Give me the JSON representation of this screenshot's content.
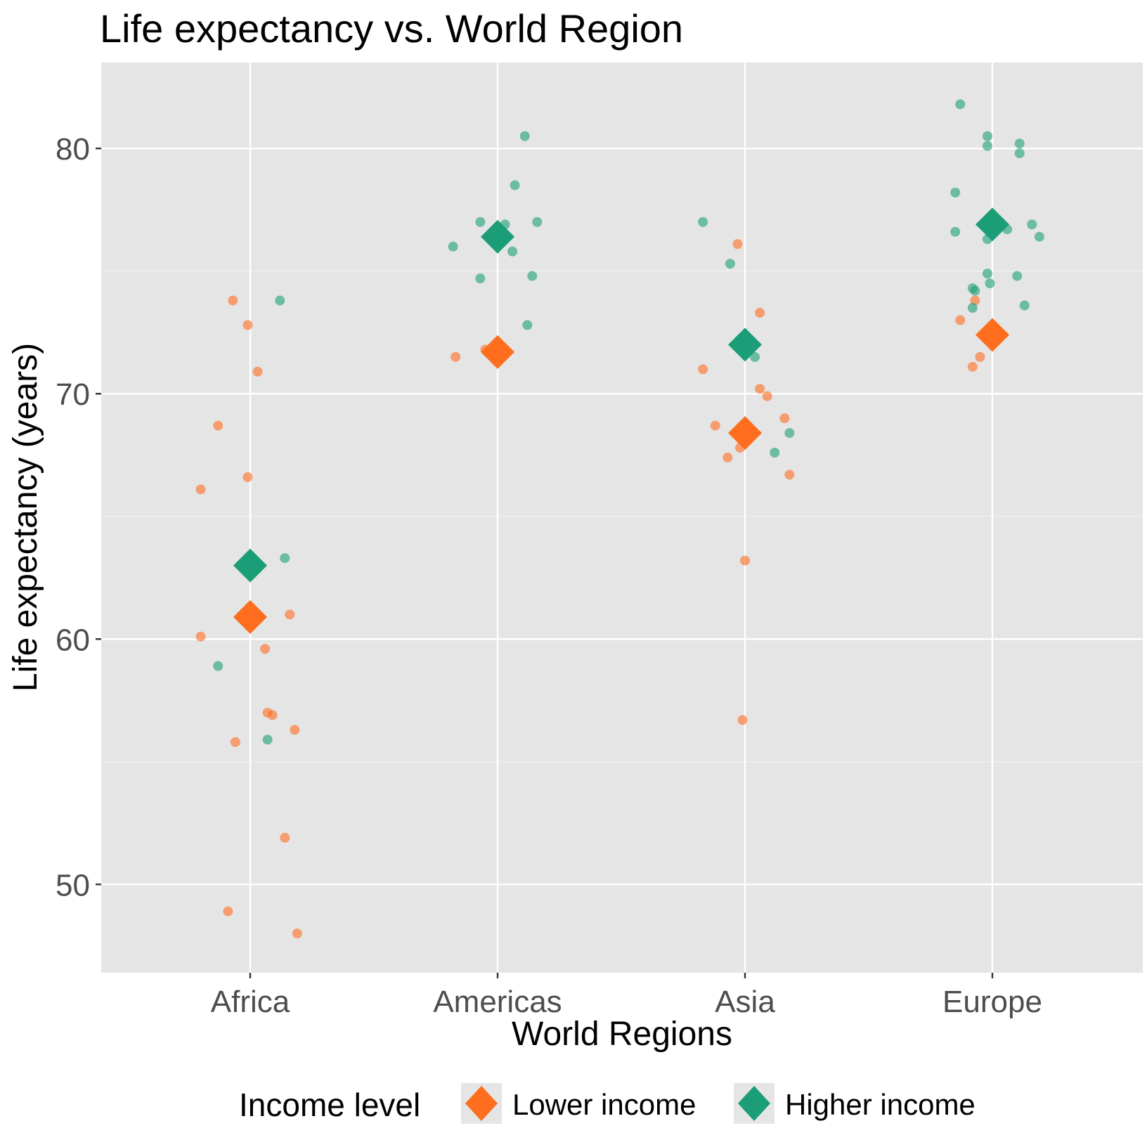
{
  "chart_data": {
    "type": "scatter",
    "title": "Life expectancy vs. World Region",
    "xlabel": "World Regions",
    "ylabel": "Life expectancy (years)",
    "categories": [
      "Africa",
      "Americas",
      "Asia",
      "Europe"
    ],
    "ylim": [
      46.4,
      83.5
    ],
    "yticks": [
      50,
      60,
      70,
      80
    ],
    "grid": true,
    "legend": {
      "title": "Income level",
      "position": "bottom"
    },
    "series": [
      {
        "name": "Lower income",
        "color": "#ff6d1f",
        "points": [
          {
            "category": "Africa",
            "offset": -0.07,
            "y": 73.8
          },
          {
            "category": "Africa",
            "offset": -0.01,
            "y": 72.8
          },
          {
            "category": "Africa",
            "offset": 0.03,
            "y": 70.9
          },
          {
            "category": "Africa",
            "offset": -0.13,
            "y": 68.7
          },
          {
            "category": "Africa",
            "offset": -0.01,
            "y": 66.6
          },
          {
            "category": "Africa",
            "offset": -0.2,
            "y": 66.1
          },
          {
            "category": "Africa",
            "offset": 0.16,
            "y": 61.0
          },
          {
            "category": "Africa",
            "offset": -0.2,
            "y": 60.1
          },
          {
            "category": "Africa",
            "offset": 0.06,
            "y": 59.6
          },
          {
            "category": "Africa",
            "offset": 0.07,
            "y": 57.0
          },
          {
            "category": "Africa",
            "offset": 0.09,
            "y": 56.9
          },
          {
            "category": "Africa",
            "offset": 0.18,
            "y": 56.3
          },
          {
            "category": "Africa",
            "offset": -0.06,
            "y": 55.8
          },
          {
            "category": "Africa",
            "offset": 0.14,
            "y": 51.9
          },
          {
            "category": "Africa",
            "offset": -0.09,
            "y": 48.9
          },
          {
            "category": "Africa",
            "offset": 0.19,
            "y": 48.0
          },
          {
            "category": "Americas",
            "offset": -0.17,
            "y": 71.5
          },
          {
            "category": "Americas",
            "offset": -0.05,
            "y": 71.8
          },
          {
            "category": "Asia",
            "offset": -0.03,
            "y": 76.1
          },
          {
            "category": "Asia",
            "offset": 0.06,
            "y": 73.3
          },
          {
            "category": "Asia",
            "offset": -0.17,
            "y": 71.0
          },
          {
            "category": "Asia",
            "offset": 0.06,
            "y": 70.2
          },
          {
            "category": "Asia",
            "offset": 0.09,
            "y": 69.9
          },
          {
            "category": "Asia",
            "offset": 0.16,
            "y": 69.0
          },
          {
            "category": "Asia",
            "offset": -0.12,
            "y": 68.7
          },
          {
            "category": "Asia",
            "offset": -0.02,
            "y": 67.8
          },
          {
            "category": "Asia",
            "offset": -0.07,
            "y": 67.4
          },
          {
            "category": "Asia",
            "offset": 0.18,
            "y": 66.7
          },
          {
            "category": "Asia",
            "offset": 0.0,
            "y": 63.2
          },
          {
            "category": "Asia",
            "offset": -0.01,
            "y": 56.7
          },
          {
            "category": "Europe",
            "offset": -0.07,
            "y": 73.8
          },
          {
            "category": "Europe",
            "offset": -0.13,
            "y": 73.0
          },
          {
            "category": "Europe",
            "offset": -0.05,
            "y": 71.5
          },
          {
            "category": "Europe",
            "offset": -0.08,
            "y": 71.1
          }
        ],
        "means": [
          {
            "category": "Africa",
            "y": 60.9
          },
          {
            "category": "Americas",
            "y": 71.7
          },
          {
            "category": "Asia",
            "y": 68.4
          },
          {
            "category": "Europe",
            "y": 72.4
          }
        ]
      },
      {
        "name": "Higher income",
        "color": "#1b9e77",
        "points": [
          {
            "category": "Africa",
            "offset": 0.12,
            "y": 73.8
          },
          {
            "category": "Africa",
            "offset": 0.14,
            "y": 63.3
          },
          {
            "category": "Africa",
            "offset": -0.13,
            "y": 58.9
          },
          {
            "category": "Africa",
            "offset": 0.07,
            "y": 55.9
          },
          {
            "category": "Americas",
            "offset": 0.11,
            "y": 80.5
          },
          {
            "category": "Americas",
            "offset": 0.07,
            "y": 78.5
          },
          {
            "category": "Americas",
            "offset": -0.07,
            "y": 77.0
          },
          {
            "category": "Americas",
            "offset": 0.03,
            "y": 76.9
          },
          {
            "category": "Americas",
            "offset": 0.16,
            "y": 77.0
          },
          {
            "category": "Americas",
            "offset": -0.18,
            "y": 76.0
          },
          {
            "category": "Americas",
            "offset": 0.06,
            "y": 75.8
          },
          {
            "category": "Americas",
            "offset": -0.07,
            "y": 74.7
          },
          {
            "category": "Americas",
            "offset": 0.14,
            "y": 74.8
          },
          {
            "category": "Americas",
            "offset": 0.12,
            "y": 72.8
          },
          {
            "category": "Asia",
            "offset": -0.17,
            "y": 77.0
          },
          {
            "category": "Asia",
            "offset": -0.06,
            "y": 75.3
          },
          {
            "category": "Asia",
            "offset": 0.04,
            "y": 71.5
          },
          {
            "category": "Asia",
            "offset": 0.18,
            "y": 68.4
          },
          {
            "category": "Asia",
            "offset": 0.12,
            "y": 67.6
          },
          {
            "category": "Europe",
            "offset": -0.13,
            "y": 81.8
          },
          {
            "category": "Europe",
            "offset": -0.02,
            "y": 80.5
          },
          {
            "category": "Europe",
            "offset": 0.11,
            "y": 80.2
          },
          {
            "category": "Europe",
            "offset": -0.02,
            "y": 80.1
          },
          {
            "category": "Europe",
            "offset": 0.11,
            "y": 79.8
          },
          {
            "category": "Europe",
            "offset": -0.15,
            "y": 78.2
          },
          {
            "category": "Europe",
            "offset": -0.15,
            "y": 76.6
          },
          {
            "category": "Europe",
            "offset": 0.06,
            "y": 76.7
          },
          {
            "category": "Europe",
            "offset": 0.16,
            "y": 76.9
          },
          {
            "category": "Europe",
            "offset": 0.19,
            "y": 76.4
          },
          {
            "category": "Europe",
            "offset": -0.02,
            "y": 76.3
          },
          {
            "category": "Europe",
            "offset": -0.02,
            "y": 74.9
          },
          {
            "category": "Europe",
            "offset": 0.1,
            "y": 74.8
          },
          {
            "category": "Europe",
            "offset": -0.01,
            "y": 74.5
          },
          {
            "category": "Europe",
            "offset": -0.08,
            "y": 74.3
          },
          {
            "category": "Europe",
            "offset": -0.07,
            "y": 74.2
          },
          {
            "category": "Europe",
            "offset": 0.13,
            "y": 73.6
          },
          {
            "category": "Europe",
            "offset": -0.08,
            "y": 73.5
          }
        ],
        "means": [
          {
            "category": "Africa",
            "y": 63.0
          },
          {
            "category": "Americas",
            "y": 76.4
          },
          {
            "category": "Asia",
            "y": 72.0
          },
          {
            "category": "Europe",
            "y": 76.9
          }
        ]
      }
    ]
  }
}
